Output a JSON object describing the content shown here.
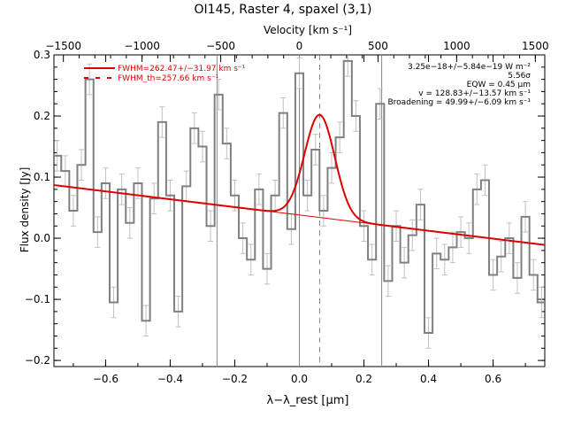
{
  "chart_data": {
    "type": "line",
    "title": "OI145, Raster 4, spaxel (3,1)",
    "xlabel": "λ−λ_rest [μm]",
    "ylabel": "Flux density [Jy]",
    "top_axis_label": "Velocity [km s⁻¹]",
    "xlim": [
      -0.76,
      0.76
    ],
    "ylim": [
      -0.21,
      0.3
    ],
    "top_xlim": [
      -1560,
      1560
    ],
    "x_ticks": [
      -0.6,
      -0.4,
      -0.2,
      0.0,
      0.2,
      0.4,
      0.6
    ],
    "x_tick_labels": [
      "−0.6",
      "−0.4",
      "−0.2",
      "0.0",
      "0.2",
      "0.4",
      "0.6"
    ],
    "y_ticks": [
      -0.2,
      -0.1,
      0.0,
      0.1,
      0.2,
      0.3
    ],
    "y_tick_labels": [
      "−0.2",
      "−0.1",
      "0.0",
      "0.1",
      "0.2",
      "0.3"
    ],
    "top_ticks": [
      -1500,
      -1000,
      -500,
      0,
      500,
      1000,
      1500
    ],
    "top_tick_labels": [
      "−1500",
      "−1000",
      "−500",
      "0",
      "500",
      "1000",
      "1500"
    ],
    "vertical_lines": [
      -0.255,
      0.0,
      0.255
    ],
    "dashed_vline": 0.063,
    "legend": [
      {
        "label": "FWHM=262.47+/−31.97 km s⁻¹",
        "style": "solid",
        "color": "#dd0000"
      },
      {
        "label": "FWHM_th=257.66 km s⁻¹",
        "style": "dashed",
        "color": "#dd0000"
      }
    ],
    "annotations": [
      "3.25e−18+/−5.84e−19 W m⁻²",
      "5.56σ",
      "EQW = 0.45 μm",
      "v = 128.83+/−13.57 km s⁻¹",
      "Broadening = 49.99+/−6.09 km s⁻¹"
    ],
    "spectrum": {
      "name": "data",
      "color": "#808080",
      "x": [
        -0.75,
        -0.725,
        -0.7,
        -0.675,
        -0.65,
        -0.625,
        -0.6,
        -0.575,
        -0.55,
        -0.525,
        -0.5,
        -0.475,
        -0.45,
        -0.425,
        -0.4,
        -0.375,
        -0.35,
        -0.325,
        -0.3,
        -0.275,
        -0.25,
        -0.225,
        -0.2,
        -0.175,
        -0.15,
        -0.125,
        -0.1,
        -0.075,
        -0.05,
        -0.025,
        0.0,
        0.025,
        0.05,
        0.075,
        0.1,
        0.125,
        0.15,
        0.175,
        0.2,
        0.225,
        0.25,
        0.275,
        0.3,
        0.325,
        0.35,
        0.375,
        0.4,
        0.425,
        0.45,
        0.475,
        0.5,
        0.525,
        0.55,
        0.575,
        0.6,
        0.625,
        0.65,
        0.675,
        0.7,
        0.725,
        0.75
      ],
      "y": [
        0.135,
        0.11,
        0.045,
        0.12,
        0.26,
        0.01,
        0.09,
        -0.105,
        0.08,
        0.025,
        0.09,
        -0.135,
        0.065,
        0.19,
        0.07,
        -0.12,
        0.085,
        0.18,
        0.15,
        0.02,
        0.235,
        0.155,
        0.07,
        0.0,
        -0.035,
        0.08,
        -0.05,
        0.07,
        0.205,
        0.015,
        0.27,
        0.07,
        0.145,
        0.045,
        0.115,
        0.165,
        0.29,
        0.2,
        0.02,
        -0.035,
        0.22,
        -0.07,
        0.02,
        -0.04,
        0.005,
        0.055,
        -0.155,
        -0.025,
        -0.035,
        -0.015,
        0.01,
        0.0,
        0.08,
        0.095,
        -0.06,
        -0.03,
        0.0,
        -0.065,
        0.035,
        -0.06,
        -0.105
      ],
      "err": 0.025
    },
    "continuum": {
      "name": "continuum",
      "color": "#dd0000",
      "x": [
        -0.76,
        0.76
      ],
      "y": [
        0.087,
        -0.011
      ]
    },
    "gaussian": {
      "name": "fit",
      "color": "#dd0000",
      "amplitude": 0.168,
      "center": 0.063,
      "fwhm": 0.11,
      "x_range": [
        -0.12,
        0.26
      ]
    }
  }
}
